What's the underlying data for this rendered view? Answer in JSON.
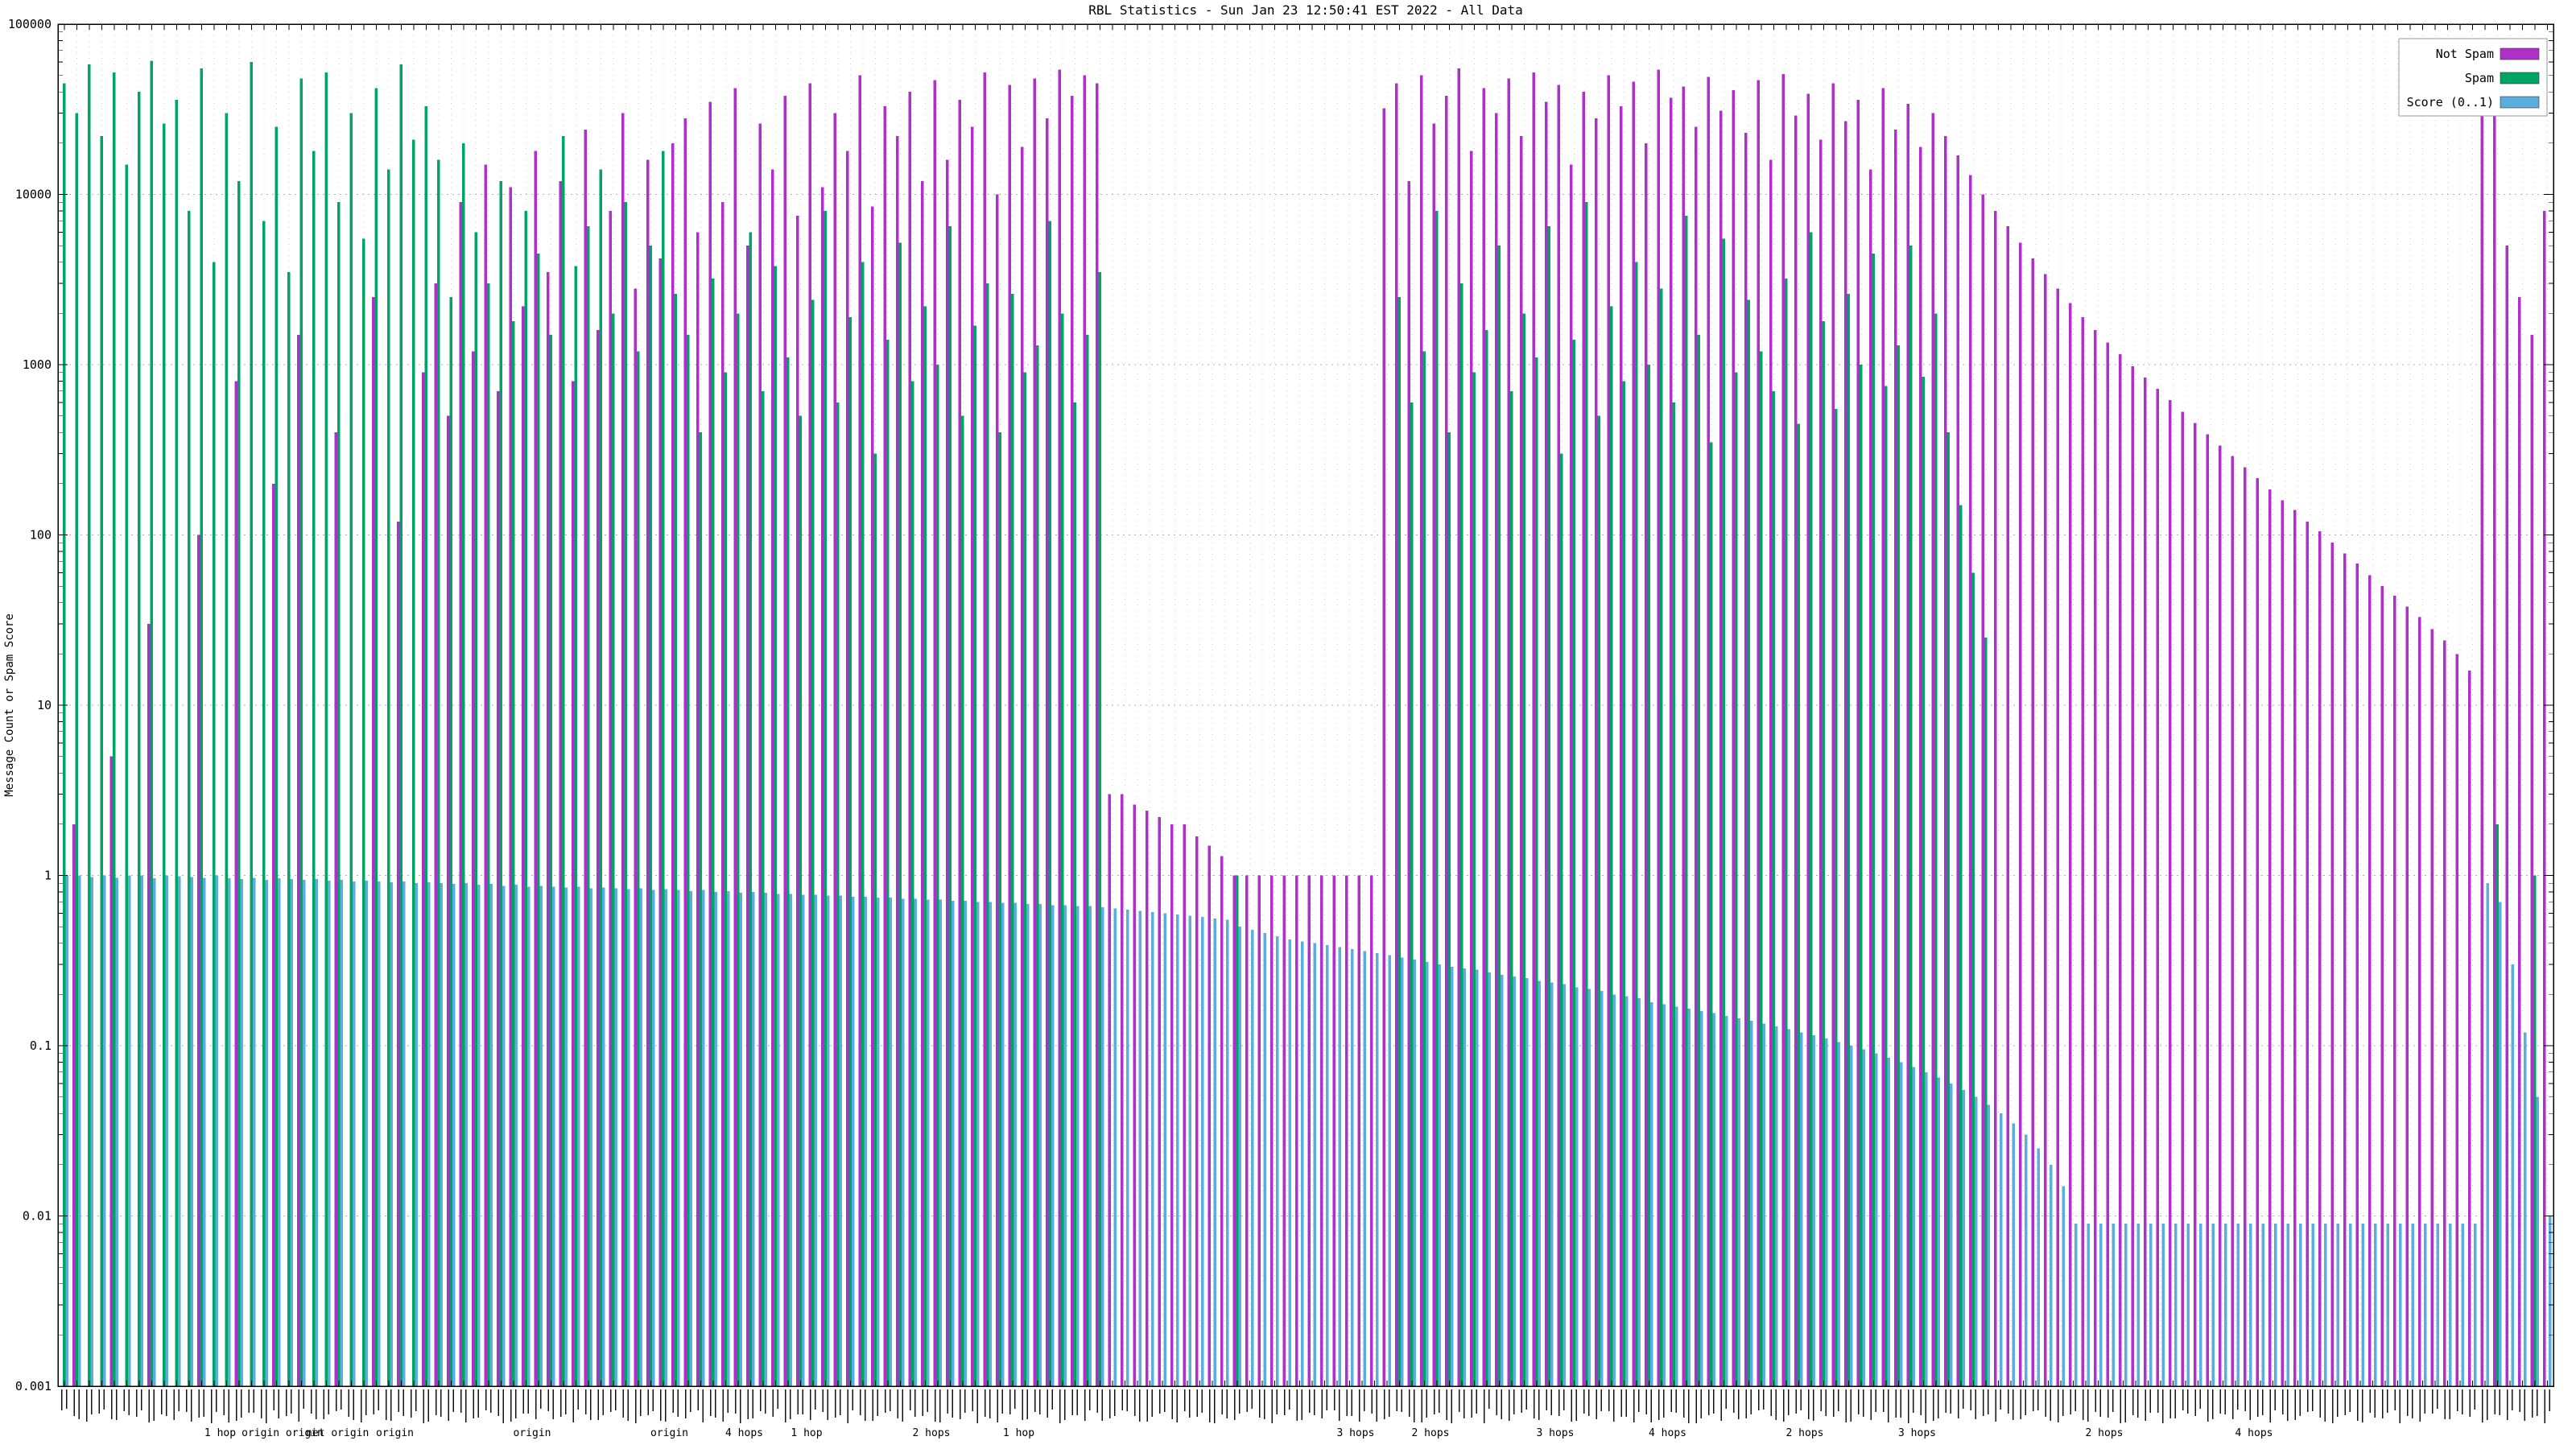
{
  "page": {
    "background": "#ffffff"
  },
  "chart_data": {
    "type": "bar",
    "title": "RBL Statistics - Sun Jan 23 12:50:41 EST 2022 - All Data",
    "ylabel": "Message Count or Spam Score",
    "xlabel": "",
    "y_scale": "log",
    "ylim": [
      0.001,
      100000
    ],
    "ymin": 0.001,
    "y_ticks": [
      "100000",
      "10000",
      "1000",
      "100",
      "10",
      "1",
      "0.1",
      "0.01",
      "0.001"
    ],
    "grid": true,
    "legend_position": "top-right",
    "x_axis_note": "hundreds of rotated per-RBL item labels, illegible at capture resolution",
    "series": [
      {
        "name": "Not Spam",
        "color": "#AE30C8"
      },
      {
        "name": "Spam",
        "color": "#00A566"
      },
      {
        "name": "Score (0..1)",
        "color": "#5BAEDC"
      }
    ],
    "point_format": [
      "not_spam_count",
      "spam_count",
      "score"
    ],
    "points": [
      [
        0,
        45000,
        1.0
      ],
      [
        2,
        30000,
        1.0
      ],
      [
        0,
        58000,
        0.98
      ],
      [
        0,
        22000,
        1.0
      ],
      [
        5,
        52000,
        0.97
      ],
      [
        0,
        15000,
        1.0
      ],
      [
        0,
        40000,
        1.0
      ],
      [
        30,
        61000,
        0.96
      ],
      [
        0,
        26000,
        1.0
      ],
      [
        0,
        36000,
        0.99
      ],
      [
        0,
        8000,
        0.98
      ],
      [
        100,
        55000,
        0.97
      ],
      [
        0,
        4000,
        1.0
      ],
      [
        0,
        30000,
        0.96
      ],
      [
        800,
        12000,
        0.95
      ],
      [
        0,
        60000,
        0.97
      ],
      [
        0,
        7000,
        0.94
      ],
      [
        200,
        25000,
        0.96
      ],
      [
        0,
        3500,
        0.95
      ],
      [
        1500,
        48000,
        0.94
      ],
      [
        0,
        18000,
        0.95
      ],
      [
        0,
        52000,
        0.93
      ],
      [
        400,
        9000,
        0.94
      ],
      [
        0,
        30000,
        0.92
      ],
      [
        0,
        5500,
        0.93
      ],
      [
        2500,
        42000,
        0.92
      ],
      [
        0,
        14000,
        0.91
      ],
      [
        120,
        58000,
        0.92
      ],
      [
        0,
        21000,
        0.9
      ],
      [
        900,
        33000,
        0.91
      ],
      [
        3000,
        16000,
        0.9
      ],
      [
        500,
        2500,
        0.89
      ],
      [
        9000,
        20000,
        0.9
      ],
      [
        1200,
        6000,
        0.88
      ],
      [
        15000,
        3000,
        0.89
      ],
      [
        700,
        12000,
        0.87
      ],
      [
        11000,
        1800,
        0.88
      ],
      [
        2200,
        8000,
        0.86
      ],
      [
        18000,
        4500,
        0.87
      ],
      [
        3500,
        1500,
        0.86
      ],
      [
        12000,
        22000,
        0.85
      ],
      [
        800,
        3800,
        0.86
      ],
      [
        24000,
        6500,
        0.84
      ],
      [
        1600,
        14000,
        0.85
      ],
      [
        8000,
        2000,
        0.84
      ],
      [
        30000,
        9000,
        0.83
      ],
      [
        2800,
        1200,
        0.84
      ],
      [
        16000,
        5000,
        0.82
      ],
      [
        4200,
        18000,
        0.83
      ],
      [
        20000,
        2600,
        0.82
      ],
      [
        28000,
        1500,
        0.81
      ],
      [
        6000,
        400,
        0.82
      ],
      [
        35000,
        3200,
        0.8
      ],
      [
        9000,
        900,
        0.81
      ],
      [
        42000,
        2000,
        0.79
      ],
      [
        5000,
        6000,
        0.8
      ],
      [
        26000,
        700,
        0.79
      ],
      [
        14000,
        3800,
        0.78
      ],
      [
        38000,
        1100,
        0.78
      ],
      [
        7500,
        500,
        0.77
      ],
      [
        45000,
        2400,
        0.77
      ],
      [
        11000,
        8000,
        0.76
      ],
      [
        30000,
        600,
        0.76
      ],
      [
        18000,
        1900,
        0.75
      ],
      [
        50000,
        4000,
        0.75
      ],
      [
        8500,
        300,
        0.74
      ],
      [
        33000,
        1400,
        0.74
      ],
      [
        22000,
        5200,
        0.73
      ],
      [
        40000,
        800,
        0.73
      ],
      [
        12000,
        2200,
        0.72
      ],
      [
        47000,
        1000,
        0.72
      ],
      [
        16000,
        6500,
        0.71
      ],
      [
        36000,
        500,
        0.71
      ],
      [
        25000,
        1700,
        0.7
      ],
      [
        52000,
        3000,
        0.7
      ],
      [
        10000,
        400,
        0.69
      ],
      [
        44000,
        2600,
        0.69
      ],
      [
        19000,
        900,
        0.68
      ],
      [
        48000,
        1300,
        0.68
      ],
      [
        28000,
        7000,
        0.67
      ],
      [
        54000,
        2000,
        0.67
      ],
      [
        38000,
        600,
        0.66
      ],
      [
        50000,
        1500,
        0.66
      ],
      [
        45000,
        3500,
        0.65
      ],
      [
        3,
        0,
        0.64
      ],
      [
        3,
        0,
        0.63
      ],
      [
        2.6,
        0,
        0.62
      ],
      [
        2.4,
        0,
        0.61
      ],
      [
        2.2,
        0,
        0.6
      ],
      [
        2,
        0,
        0.59
      ],
      [
        2,
        0,
        0.58
      ],
      [
        1.7,
        0,
        0.57
      ],
      [
        1.5,
        0,
        0.56
      ],
      [
        1.3,
        0,
        0.55
      ],
      [
        1,
        1,
        0.5
      ],
      [
        1,
        0,
        0.48
      ],
      [
        1,
        0,
        0.46
      ],
      [
        1,
        0,
        0.44
      ],
      [
        1,
        0,
        0.42
      ],
      [
        1,
        0,
        0.41
      ],
      [
        1,
        0,
        0.4
      ],
      [
        1,
        0,
        0.39
      ],
      [
        1,
        0,
        0.38
      ],
      [
        1,
        0,
        0.37
      ],
      [
        1,
        0,
        0.36
      ],
      [
        1,
        0,
        0.35
      ],
      [
        32000,
        0,
        0.34
      ],
      [
        45000,
        2500,
        0.33
      ],
      [
        12000,
        600,
        0.32
      ],
      [
        50000,
        1200,
        0.31
      ],
      [
        26000,
        8000,
        0.3
      ],
      [
        38000,
        400,
        0.29
      ],
      [
        55000,
        3000,
        0.285
      ],
      [
        18000,
        900,
        0.28
      ],
      [
        42000,
        1600,
        0.27
      ],
      [
        30000,
        5000,
        0.26
      ],
      [
        48000,
        700,
        0.255
      ],
      [
        22000,
        2000,
        0.25
      ],
      [
        52000,
        1100,
        0.24
      ],
      [
        35000,
        6500,
        0.235
      ],
      [
        44000,
        300,
        0.23
      ],
      [
        15000,
        1400,
        0.22
      ],
      [
        40000,
        9000,
        0.215
      ],
      [
        28000,
        500,
        0.21
      ],
      [
        50000,
        2200,
        0.2
      ],
      [
        33000,
        800,
        0.195
      ],
      [
        46000,
        4000,
        0.19
      ],
      [
        20000,
        1000,
        0.18
      ],
      [
        54000,
        2800,
        0.175
      ],
      [
        37000,
        600,
        0.17
      ],
      [
        43000,
        7500,
        0.165
      ],
      [
        25000,
        1500,
        0.16
      ],
      [
        49000,
        350,
        0.155
      ],
      [
        31000,
        5500,
        0.15
      ],
      [
        41000,
        900,
        0.145
      ],
      [
        23000,
        2400,
        0.14
      ],
      [
        47000,
        1200,
        0.135
      ],
      [
        16000,
        700,
        0.13
      ],
      [
        51000,
        3200,
        0.125
      ],
      [
        29000,
        450,
        0.12
      ],
      [
        39000,
        6000,
        0.115
      ],
      [
        21000,
        1800,
        0.11
      ],
      [
        45000,
        550,
        0.105
      ],
      [
        27000,
        2600,
        0.1
      ],
      [
        36000,
        1000,
        0.095
      ],
      [
        14000,
        4500,
        0.09
      ],
      [
        42000,
        750,
        0.085
      ],
      [
        24000,
        1300,
        0.08
      ],
      [
        34000,
        5000,
        0.075
      ],
      [
        19000,
        850,
        0.07
      ],
      [
        30000,
        2000,
        0.065
      ],
      [
        22000,
        400,
        0.06
      ],
      [
        17000,
        150,
        0.055
      ],
      [
        13000,
        60,
        0.05
      ],
      [
        10000,
        25,
        0.045
      ],
      [
        8000,
        0,
        0.04
      ],
      [
        6500,
        0,
        0.035
      ],
      [
        5200,
        0,
        0.03
      ],
      [
        4200,
        0,
        0.025
      ],
      [
        3400,
        0,
        0.02
      ],
      [
        2800,
        0,
        0.015
      ],
      [
        2300,
        0,
        0.009
      ],
      [
        1900,
        0,
        0.009
      ],
      [
        1600,
        0,
        0.009
      ],
      [
        1350,
        0,
        0.009
      ],
      [
        1150,
        0,
        0.009
      ],
      [
        980,
        0,
        0.009
      ],
      [
        840,
        0,
        0.009
      ],
      [
        720,
        0,
        0.009
      ],
      [
        620,
        0,
        0.009
      ],
      [
        530,
        0,
        0.009
      ],
      [
        455,
        0,
        0.009
      ],
      [
        390,
        0,
        0.009
      ],
      [
        335,
        0,
        0.009
      ],
      [
        290,
        0,
        0.009
      ],
      [
        250,
        0,
        0.009
      ],
      [
        215,
        0,
        0.009
      ],
      [
        185,
        0,
        0.009
      ],
      [
        160,
        0,
        0.009
      ],
      [
        140,
        0,
        0.009
      ],
      [
        120,
        0,
        0.009
      ],
      [
        105,
        0,
        0.009
      ],
      [
        90,
        0,
        0.009
      ],
      [
        78,
        0,
        0.009
      ],
      [
        68,
        0,
        0.009
      ],
      [
        58,
        0,
        0.009
      ],
      [
        50,
        0,
        0.009
      ],
      [
        44,
        0,
        0.009
      ],
      [
        38,
        0,
        0.009
      ],
      [
        33,
        0,
        0.009
      ],
      [
        28,
        0,
        0.009
      ],
      [
        24,
        0,
        0.009
      ],
      [
        20,
        0,
        0.009
      ],
      [
        16,
        0,
        0.009
      ],
      [
        38000,
        0,
        0.9
      ],
      [
        30000,
        2,
        0.7
      ],
      [
        5000,
        0,
        0.3
      ],
      [
        2500,
        0,
        0.12
      ],
      [
        1500,
        1,
        0.05
      ],
      [
        8000,
        0,
        0.01
      ]
    ],
    "x_sublabels": [
      {
        "pos": 0.065,
        "label": "1 hop"
      },
      {
        "pos": 0.09,
        "label": "origin origin"
      },
      {
        "pos": 0.112,
        "label": "net origin"
      },
      {
        "pos": 0.135,
        "label": "origin"
      },
      {
        "pos": 0.19,
        "label": "origin"
      },
      {
        "pos": 0.245,
        "label": "origin"
      },
      {
        "pos": 0.275,
        "label": "4 hops"
      },
      {
        "pos": 0.3,
        "label": "1 hop"
      },
      {
        "pos": 0.35,
        "label": "2 hops"
      },
      {
        "pos": 0.385,
        "label": "1 hop"
      },
      {
        "pos": 0.52,
        "label": "3 hops"
      },
      {
        "pos": 0.55,
        "label": "2 hops"
      },
      {
        "pos": 0.6,
        "label": "3 hops"
      },
      {
        "pos": 0.645,
        "label": "4 hops"
      },
      {
        "pos": 0.7,
        "label": "2 hops"
      },
      {
        "pos": 0.745,
        "label": "3 hops"
      },
      {
        "pos": 0.82,
        "label": "2 hops"
      },
      {
        "pos": 0.88,
        "label": "4 hops"
      }
    ]
  }
}
